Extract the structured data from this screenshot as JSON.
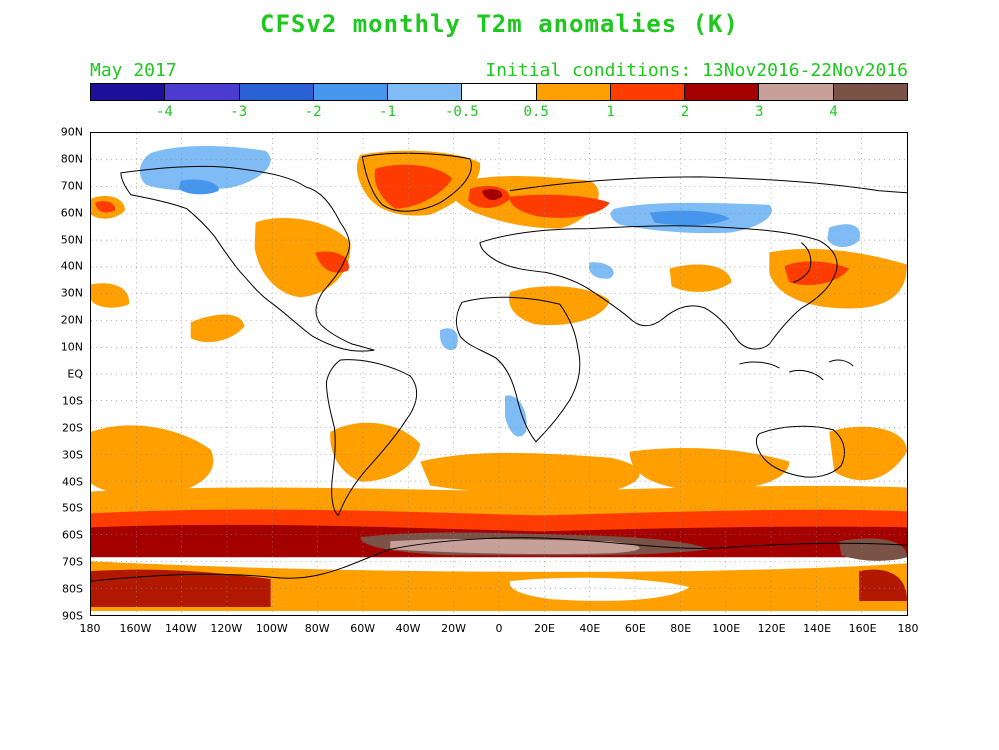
{
  "title": "CFSv2 monthly T2m anomalies (K)",
  "valid_month": "May 2017",
  "initial_conditions": "Initial conditions: 13Nov2016-22Nov2016",
  "colorbar": {
    "colors": [
      "#1c0f9a",
      "#4b3ccf",
      "#2a62d6",
      "#4796ee",
      "#7fbcf6",
      "#ffffff",
      "#ff9f00",
      "#ff3c00",
      "#a50000",
      "#c8a09a",
      "#7a5246"
    ],
    "labels": [
      "-4",
      "-3",
      "-2",
      "-1",
      "-0.5",
      "0.5",
      "1",
      "2",
      "3",
      "4"
    ]
  },
  "axes": {
    "lat_labels": [
      "90N",
      "80N",
      "70N",
      "60N",
      "50N",
      "40N",
      "30N",
      "20N",
      "10N",
      "EQ",
      "10S",
      "20S",
      "30S",
      "40S",
      "50S",
      "60S",
      "70S",
      "80S",
      "90S"
    ],
    "lon_labels": [
      "180",
      "160W",
      "140W",
      "120W",
      "100W",
      "80W",
      "60W",
      "40W",
      "20W",
      "0",
      "20E",
      "40E",
      "60E",
      "80E",
      "100E",
      "120E",
      "140E",
      "160E",
      "180"
    ]
  }
}
